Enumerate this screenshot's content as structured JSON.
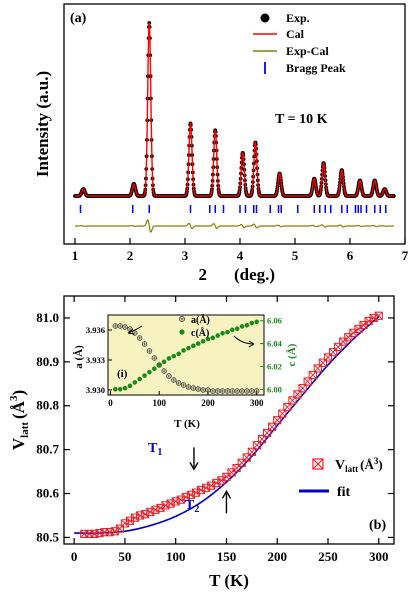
{
  "chart_data": [
    {
      "type": "scatter",
      "panel_label": "(a)",
      "xlabel_prefix": "2",
      "xlabel_suffix": "(deg.)",
      "ylabel": "Intensity (a.u.)",
      "xlim": [
        0.8,
        7.0
      ],
      "xticks": [
        1,
        2,
        3,
        4,
        5,
        6,
        7
      ],
      "annotation": "T = 10 K",
      "legend_position": "top-right",
      "legend": [
        {
          "label": "Exp.",
          "marker": "filled-circle",
          "color": "#000000"
        },
        {
          "label": "Cal",
          "marker": "line",
          "color": "#ff0000"
        },
        {
          "label": "Exp-Cal",
          "marker": "line",
          "color": "#808000"
        },
        {
          "label": "Bragg Peak",
          "marker": "vbar",
          "color": "#0000ff"
        }
      ],
      "peaks": [
        {
          "x": 1.15,
          "h": 0.04
        },
        {
          "x": 2.07,
          "h": 0.07
        },
        {
          "x": 2.35,
          "h": 1.0
        },
        {
          "x": 3.1,
          "h": 0.42
        },
        {
          "x": 3.55,
          "h": 0.38
        },
        {
          "x": 4.05,
          "h": 0.25
        },
        {
          "x": 4.28,
          "h": 0.31
        },
        {
          "x": 4.72,
          "h": 0.13
        },
        {
          "x": 5.35,
          "h": 0.1
        },
        {
          "x": 5.52,
          "h": 0.19
        },
        {
          "x": 5.85,
          "h": 0.15
        },
        {
          "x": 6.18,
          "h": 0.09
        },
        {
          "x": 6.45,
          "h": 0.09
        },
        {
          "x": 6.63,
          "h": 0.04
        }
      ],
      "bragg_positions": [
        1.1,
        2.05,
        2.35,
        3.1,
        3.45,
        3.55,
        3.7,
        4.0,
        4.1,
        4.25,
        4.3,
        4.55,
        4.7,
        4.75,
        5.05,
        5.35,
        5.45,
        5.55,
        5.65,
        5.85,
        5.95,
        6.1,
        6.15,
        6.2,
        6.3,
        6.45,
        6.55,
        6.65
      ]
    },
    {
      "type": "scatter",
      "panel_label": "(b)",
      "xlabel": "T (K)",
      "ylabel_main": "V",
      "ylabel_sub": "latt",
      "ylabel_unit": "(Å",
      "ylabel_sup": "3",
      "ylabel_close": ")",
      "xlim": [
        -10,
        315
      ],
      "ylim": [
        80.485,
        81.05
      ],
      "xticks": [
        0,
        50,
        100,
        150,
        200,
        250,
        300
      ],
      "yticks": [
        80.5,
        80.6,
        80.7,
        80.8,
        80.9,
        81.0
      ],
      "ytick_labels": [
        "80.5",
        "80.6",
        "80.7",
        "80.8",
        "80.9",
        "81.0"
      ],
      "legend_position": "center-right",
      "series": [
        {
          "name": "V(Å³)",
          "legend_main": "V",
          "legend_sub": "latt",
          "legend_unit": "(Å",
          "legend_sup": "3",
          "legend_close": ")",
          "marker": "boxed-x",
          "color": "#e8202a",
          "x": [
            10,
            15,
            20,
            25,
            30,
            35,
            40,
            45,
            50,
            55,
            60,
            65,
            70,
            75,
            80,
            85,
            90,
            95,
            100,
            105,
            110,
            115,
            120,
            125,
            130,
            135,
            140,
            145,
            150,
            155,
            160,
            165,
            170,
            175,
            180,
            185,
            190,
            195,
            200,
            205,
            210,
            215,
            220,
            225,
            230,
            235,
            240,
            245,
            250,
            255,
            260,
            265,
            270,
            275,
            280,
            285,
            290,
            295,
            300
          ],
          "y": [
            80.508,
            80.508,
            80.508,
            80.51,
            80.512,
            80.512,
            80.514,
            80.52,
            80.532,
            80.538,
            80.545,
            80.55,
            80.553,
            80.558,
            80.563,
            80.567,
            80.573,
            80.577,
            80.582,
            80.586,
            80.592,
            80.597,
            80.602,
            80.608,
            80.613,
            80.618,
            80.624,
            80.63,
            80.638,
            80.648,
            80.658,
            80.67,
            80.682,
            80.695,
            80.71,
            80.724,
            80.738,
            80.752,
            80.767,
            80.782,
            80.797,
            80.812,
            80.826,
            80.84,
            80.855,
            80.87,
            80.885,
            80.898,
            80.91,
            80.922,
            80.934,
            80.946,
            80.956,
            80.966,
            80.975,
            80.984,
            80.993,
            81.0,
            81.005
          ]
        },
        {
          "name": "fit",
          "legend_label": "fit",
          "color": "#0000cc",
          "x": [
            0,
            25,
            50,
            75,
            100,
            125,
            150,
            175,
            200,
            225,
            250,
            275,
            300
          ],
          "y": [
            80.51,
            80.51,
            80.514,
            80.527,
            80.548,
            80.58,
            80.626,
            80.685,
            80.755,
            80.825,
            80.893,
            80.952,
            81.003
          ]
        }
      ],
      "annotations": [
        {
          "main": "T",
          "sub": "1",
          "x": 118,
          "y": 80.655,
          "color": "#0000cc",
          "arrow": "down"
        },
        {
          "main": "T",
          "sub": "2",
          "x": 150,
          "y": 80.605,
          "color": "#0000cc",
          "arrow": "up"
        }
      ]
    },
    {
      "type": "scatter",
      "inset_label": "(i)",
      "background": "#f7f3c0",
      "xlabel": "T (K)",
      "ylabel_left": "a (Å)",
      "ylabel_right": "c (Å)",
      "xlim": [
        -5,
        315
      ],
      "xticks": [
        0,
        100,
        200,
        300
      ],
      "ylim_left": [
        3.9295,
        3.9375
      ],
      "yticks_left": [
        3.93,
        3.933,
        3.936
      ],
      "ytick_labels_left": [
        "3.930",
        "3.933",
        "3.936"
      ],
      "ylim_right": [
        5.995,
        6.065
      ],
      "yticks_right": [
        6.0,
        6.02,
        6.04,
        6.06
      ],
      "ytick_labels_right": [
        "6.00",
        "6.02",
        "6.04",
        "6.06"
      ],
      "legend": [
        {
          "label": "a(Å)",
          "color": "#404040",
          "marker": "circled-plus"
        },
        {
          "label": "c(Å)",
          "color": "#1a8a1a",
          "marker": "filled-circle"
        }
      ],
      "series": [
        {
          "name": "a(Å)",
          "color": "#3a3a3a",
          "axis": "left",
          "x": [
            10,
            20,
            30,
            40,
            50,
            60,
            70,
            80,
            90,
            100,
            110,
            120,
            130,
            140,
            150,
            160,
            170,
            180,
            190,
            200,
            210,
            220,
            230,
            240,
            250,
            260,
            270,
            280,
            290,
            300
          ],
          "y": [
            3.9364,
            3.9364,
            3.9363,
            3.9361,
            3.9357,
            3.9352,
            3.9346,
            3.9339,
            3.9332,
            3.9325,
            3.9319,
            3.9314,
            3.931,
            3.9307,
            3.9305,
            3.9303,
            3.9302,
            3.9301,
            3.93,
            3.93,
            3.9299,
            3.9299,
            3.9299,
            3.9299,
            3.9299,
            3.9299,
            3.9299,
            3.9299,
            3.9299,
            3.9299
          ]
        },
        {
          "name": "c(Å)",
          "color": "#1a8a1a",
          "axis": "right",
          "x": [
            10,
            20,
            30,
            40,
            50,
            60,
            70,
            80,
            90,
            100,
            110,
            120,
            130,
            140,
            150,
            160,
            170,
            180,
            190,
            200,
            210,
            220,
            230,
            240,
            250,
            260,
            270,
            280,
            290,
            300
          ],
          "y": [
            6.0,
            6.0,
            6.001,
            6.003,
            6.006,
            6.009,
            6.012,
            6.015,
            6.018,
            6.021,
            6.024,
            6.027,
            6.029,
            6.031,
            6.034,
            6.036,
            6.038,
            6.04,
            6.042,
            6.044,
            6.045,
            6.047,
            6.049,
            6.05,
            6.052,
            6.053,
            6.055,
            6.056,
            6.058,
            6.059
          ]
        }
      ]
    }
  ]
}
